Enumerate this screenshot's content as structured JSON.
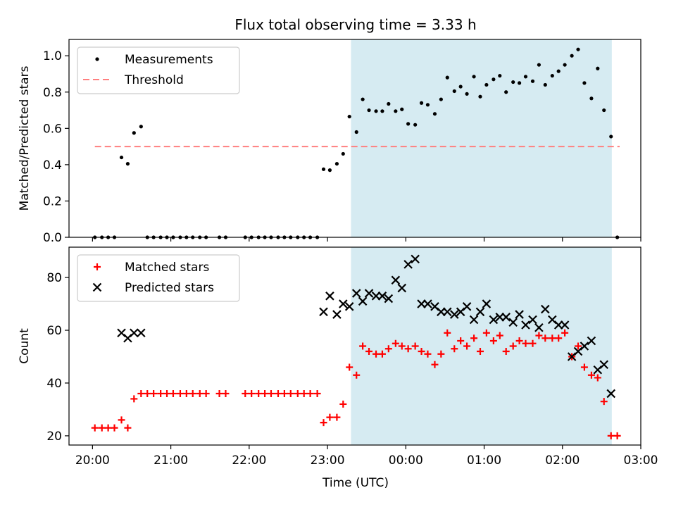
{
  "figure": {
    "title": "Flux total observing time = 3.33 h",
    "xlabel": "Time (UTC)",
    "x_ticks": [
      "20:00",
      "21:00",
      "22:00",
      "23:00",
      "00:00",
      "01:00",
      "02:00",
      "03:00"
    ],
    "x_tick_hours": [
      20,
      21,
      22,
      23,
      24,
      25,
      26,
      27
    ],
    "x_range_hours": [
      19.7,
      27.0
    ],
    "shaded_interval_hours": [
      23.3,
      26.63
    ],
    "colors": {
      "shade": "#add8e6",
      "measurements": "#000000",
      "threshold": "#ff7f7f",
      "matched": "#ff0000",
      "predicted": "#000000"
    }
  },
  "chart_data": [
    {
      "type": "scatter",
      "ylabel": "Matched/Predicted stars",
      "ylim": [
        0,
        1.09
      ],
      "y_ticks": [
        "0.0",
        "0.2",
        "0.4",
        "0.6",
        "0.8",
        "1.0"
      ],
      "y_tick_values": [
        0,
        0.2,
        0.4,
        0.6,
        0.8,
        1.0
      ],
      "legend": [
        "Measurements",
        "Threshold"
      ],
      "legend_position": "top-left",
      "threshold": {
        "y": 0.5,
        "x_from": 20.03,
        "x_to": 26.73
      },
      "series": [
        {
          "name": "Measurements",
          "marker": "dot",
          "x": [
            20.03,
            20.12,
            20.2,
            20.28,
            20.37,
            20.45,
            20.53,
            20.62,
            20.7,
            20.78,
            20.87,
            20.95,
            21.03,
            21.12,
            21.2,
            21.28,
            21.37,
            21.45,
            21.62,
            21.7,
            21.95,
            22.03,
            22.12,
            22.2,
            22.28,
            22.37,
            22.45,
            22.53,
            22.62,
            22.7,
            22.78,
            22.87,
            22.95,
            23.03,
            23.12,
            23.2,
            23.28,
            23.37,
            23.45,
            23.53,
            23.62,
            23.7,
            23.78,
            23.87,
            23.95,
            24.03,
            24.12,
            24.2,
            24.28,
            24.37,
            24.45,
            24.53,
            24.62,
            24.7,
            24.78,
            24.87,
            24.95,
            25.03,
            25.12,
            25.2,
            25.28,
            25.37,
            25.45,
            25.53,
            25.62,
            25.7,
            25.78,
            25.87,
            25.95,
            26.03,
            26.12,
            26.2,
            26.28,
            26.37,
            26.45,
            26.53,
            26.62,
            26.7
          ],
          "y": [
            0,
            0,
            0,
            0,
            0.44,
            0.405,
            0.575,
            0.61,
            0,
            0,
            0,
            0,
            0,
            0,
            0,
            0,
            0,
            0,
            0,
            0,
            0,
            0,
            0,
            0,
            0,
            0,
            0,
            0,
            0,
            0,
            0,
            0,
            0.375,
            0.37,
            0.405,
            0.46,
            0.665,
            0.58,
            0.76,
            0.7,
            0.695,
            0.695,
            0.735,
            0.695,
            0.705,
            0.625,
            0.62,
            0.74,
            0.73,
            0.68,
            0.76,
            0.88,
            0.805,
            0.83,
            0.79,
            0.885,
            0.775,
            0.84,
            0.87,
            0.89,
            0.8,
            0.855,
            0.85,
            0.885,
            0.86,
            0.95,
            0.84,
            0.89,
            0.915,
            0.95,
            1.0,
            1.035,
            0.85,
            0.765,
            0.93,
            0.7,
            0.555,
            0
          ]
        }
      ]
    },
    {
      "type": "scatter",
      "ylabel": "Count",
      "ylim": [
        16.5,
        91.5
      ],
      "y_ticks": [
        "20",
        "40",
        "60",
        "80"
      ],
      "y_tick_values": [
        20,
        40,
        60,
        80
      ],
      "legend": [
        "Matched stars",
        "Predicted stars"
      ],
      "legend_position": "top-left",
      "series": [
        {
          "name": "Matched stars",
          "marker": "plus",
          "x": [
            20.03,
            20.12,
            20.2,
            20.28,
            20.37,
            20.45,
            20.53,
            20.62,
            20.7,
            20.78,
            20.87,
            20.95,
            21.03,
            21.12,
            21.2,
            21.28,
            21.37,
            21.45,
            21.62,
            21.7,
            21.95,
            22.03,
            22.12,
            22.2,
            22.28,
            22.37,
            22.45,
            22.53,
            22.62,
            22.7,
            22.78,
            22.87,
            22.95,
            23.03,
            23.12,
            23.2,
            23.28,
            23.37,
            23.45,
            23.53,
            23.62,
            23.7,
            23.78,
            23.87,
            23.95,
            24.03,
            24.12,
            24.2,
            24.28,
            24.37,
            24.45,
            24.53,
            24.62,
            24.7,
            24.78,
            24.87,
            24.95,
            25.03,
            25.12,
            25.2,
            25.28,
            25.37,
            25.45,
            25.53,
            25.62,
            25.7,
            25.78,
            25.87,
            25.95,
            26.03,
            26.12,
            26.2,
            26.28,
            26.37,
            26.45,
            26.53,
            26.62,
            26.7
          ],
          "y": [
            23,
            23,
            23,
            23,
            26,
            23,
            34,
            36,
            36,
            36,
            36,
            36,
            36,
            36,
            36,
            36,
            36,
            36,
            36,
            36,
            36,
            36,
            36,
            36,
            36,
            36,
            36,
            36,
            36,
            36,
            36,
            36,
            25,
            27,
            27,
            32,
            46,
            43,
            54,
            52,
            51,
            51,
            53,
            55,
            54,
            53,
            54,
            52,
            51,
            47,
            51,
            59,
            53,
            56,
            54,
            57,
            52,
            59,
            56,
            58,
            52,
            54,
            56,
            55,
            55,
            58,
            57,
            57,
            57,
            59,
            50,
            54,
            46,
            43,
            42,
            33,
            20,
            20
          ]
        },
        {
          "name": "Predicted stars",
          "marker": "x",
          "x": [
            20.37,
            20.45,
            20.53,
            20.62,
            22.95,
            23.03,
            23.12,
            23.2,
            23.28,
            23.37,
            23.45,
            23.53,
            23.62,
            23.7,
            23.78,
            23.87,
            23.95,
            24.03,
            24.12,
            24.2,
            24.28,
            24.37,
            24.45,
            24.53,
            24.62,
            24.7,
            24.78,
            24.87,
            24.95,
            25.03,
            25.12,
            25.2,
            25.28,
            25.37,
            25.45,
            25.53,
            25.62,
            25.7,
            25.78,
            25.87,
            25.95,
            26.03,
            26.12,
            26.2,
            26.28,
            26.37,
            26.45,
            26.53,
            26.62
          ],
          "y": [
            59,
            57,
            59,
            59,
            67,
            73,
            66,
            70,
            69,
            74,
            71,
            74,
            73,
            73,
            72,
            79,
            76,
            85,
            87,
            70,
            70,
            69,
            67,
            67,
            66,
            67,
            69,
            64,
            67,
            70,
            64,
            65,
            65,
            63,
            66,
            62,
            64,
            61,
            68,
            64,
            62,
            62,
            50,
            52,
            54,
            56,
            45,
            47,
            36
          ]
        }
      ]
    }
  ]
}
